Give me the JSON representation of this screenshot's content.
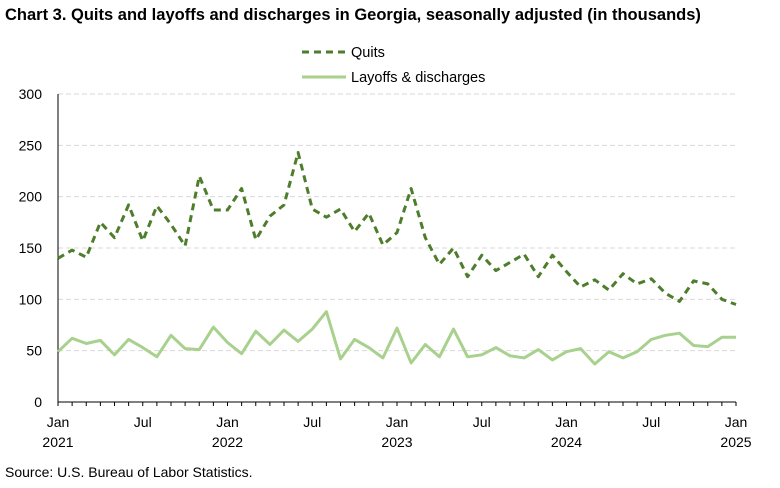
{
  "title": "Chart 3. Quits and layoffs and discharges in Georgia, seasonally adjusted (in thousands)",
  "source": "Source: U.S. Bureau of Labor Statistics.",
  "colors": {
    "quits": "#4e7d2b",
    "layoffs": "#a9d18e",
    "grid": "#d9d9d9",
    "axis": "#000000"
  },
  "chart_data": {
    "type": "line",
    "title": "Chart 3. Quits and layoffs and discharges in Georgia, seasonally adjusted (in thousands)",
    "xlabel": "",
    "ylabel": "",
    "ylim": [
      0,
      300
    ],
    "yticks": [
      "0",
      "50",
      "100",
      "150",
      "200",
      "250",
      "300"
    ],
    "grid": "horizontal dashed",
    "legend_placement": "top-center",
    "x": [
      "2021-01",
      "2021-02",
      "2021-03",
      "2021-04",
      "2021-05",
      "2021-06",
      "2021-07",
      "2021-08",
      "2021-09",
      "2021-10",
      "2021-11",
      "2021-12",
      "2022-01",
      "2022-02",
      "2022-03",
      "2022-04",
      "2022-05",
      "2022-06",
      "2022-07",
      "2022-08",
      "2022-09",
      "2022-10",
      "2022-11",
      "2022-12",
      "2023-01",
      "2023-02",
      "2023-03",
      "2023-04",
      "2023-05",
      "2023-06",
      "2023-07",
      "2023-08",
      "2023-09",
      "2023-10",
      "2023-11",
      "2023-12",
      "2024-01",
      "2024-02",
      "2024-03",
      "2024-04",
      "2024-05",
      "2024-06",
      "2024-07",
      "2024-08",
      "2024-09",
      "2024-10",
      "2024-11",
      "2024-12",
      "2025-01"
    ],
    "xtick_labels": [
      {
        "month": "Jan",
        "year": "2021",
        "index": 0
      },
      {
        "month": "Jul",
        "year": "",
        "index": 6
      },
      {
        "month": "Jan",
        "year": "2022",
        "index": 12
      },
      {
        "month": "Jul",
        "year": "",
        "index": 18
      },
      {
        "month": "Jan",
        "year": "2023",
        "index": 24
      },
      {
        "month": "Jul",
        "year": "",
        "index": 30
      },
      {
        "month": "Jan",
        "year": "2024",
        "index": 36
      },
      {
        "month": "Jul",
        "year": "",
        "index": 42
      },
      {
        "month": "Jan",
        "year": "2025",
        "index": 48
      }
    ],
    "series": [
      {
        "name": "Quits",
        "style": "dashed",
        "values": [
          140,
          148,
          141,
          175,
          160,
          192,
          157,
          191,
          173,
          152,
          220,
          187,
          187,
          208,
          158,
          181,
          192,
          243,
          188,
          180,
          188,
          166,
          184,
          153,
          165,
          208,
          160,
          134,
          150,
          122,
          143,
          128,
          136,
          144,
          122,
          143,
          127,
          112,
          119,
          109,
          125,
          115,
          120,
          106,
          98,
          118,
          115,
          100,
          95
        ]
      },
      {
        "name": "Layoffs & discharges",
        "style": "solid",
        "values": [
          49,
          62,
          57,
          60,
          46,
          61,
          53,
          44,
          65,
          52,
          51,
          73,
          58,
          47,
          69,
          56,
          70,
          59,
          71,
          88,
          42,
          61,
          53,
          43,
          72,
          38,
          56,
          44,
          71,
          44,
          46,
          53,
          45,
          43,
          51,
          41,
          49,
          52,
          37,
          49,
          43,
          49,
          61,
          65,
          67,
          55,
          54,
          63,
          63
        ]
      }
    ]
  }
}
